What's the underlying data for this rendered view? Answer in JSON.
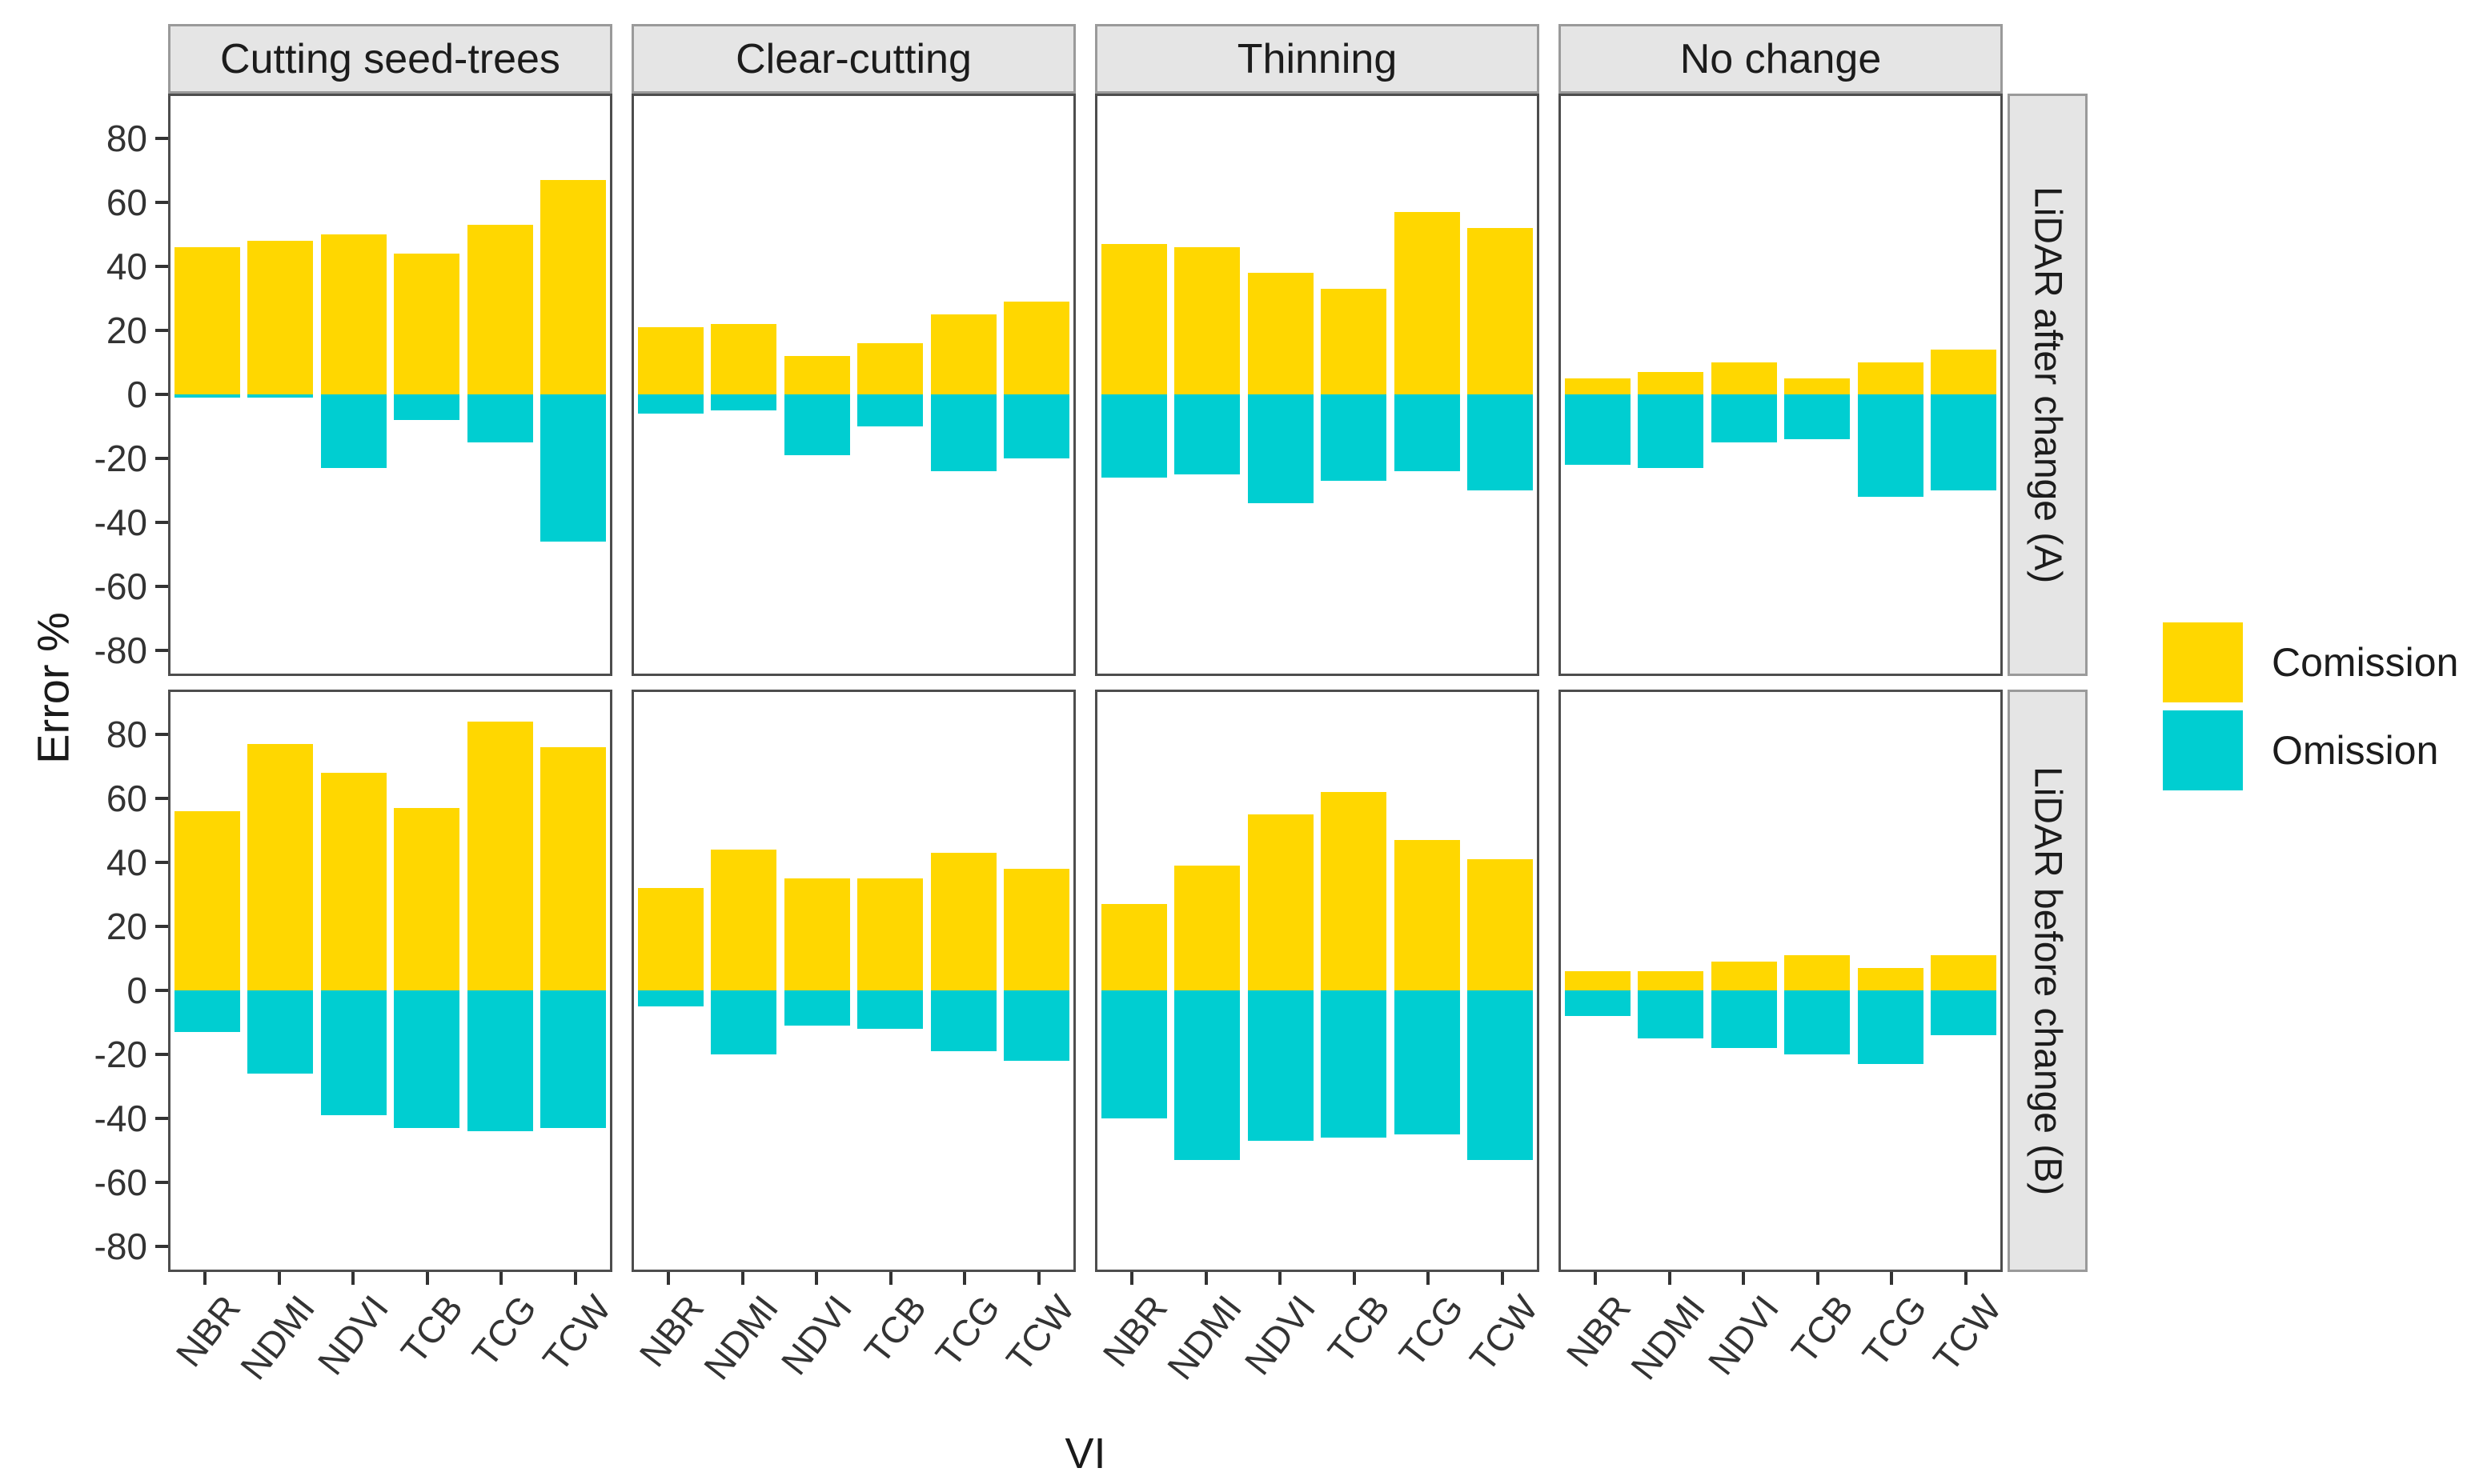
{
  "axes": {
    "y_title": "Error %",
    "x_title": "VI",
    "y_tick_labels": [
      "80",
      "60",
      "40",
      "20",
      "0",
      "-20",
      "-40",
      "-60",
      "-80"
    ]
  },
  "legend": {
    "items": [
      {
        "label": "Comission",
        "color": "#FFD700"
      },
      {
        "label": "Omission",
        "color": "#00CED1"
      }
    ]
  },
  "chart_data": {
    "type": "bar",
    "title": "",
    "xlabel": "VI",
    "ylabel": "Error %",
    "ylim": [
      -88,
      94
    ],
    "yticks": [
      80,
      60,
      40,
      20,
      0,
      -20,
      -40,
      -60,
      -80
    ],
    "grid": false,
    "legend_position": "right",
    "categories": [
      "NBR",
      "NDMI",
      "NDVI",
      "TCB",
      "TCG",
      "TCW"
    ],
    "facet_cols": [
      "Cutting seed-trees",
      "Clear-cutting",
      "Thinning",
      "No change"
    ],
    "facet_rows": [
      "LiDAR after change (A)",
      "LiDAR before change (B)"
    ],
    "series": [
      {
        "name": "Comission",
        "color": "#FFD700"
      },
      {
        "name": "Omission",
        "color": "#00CED1"
      }
    ],
    "panels": [
      {
        "row": "LiDAR after change (A)",
        "col": "Cutting seed-trees",
        "comission": [
          46,
          48,
          50,
          44,
          53,
          67
        ],
        "omission": [
          -1,
          -1,
          -23,
          -8,
          -15,
          -46
        ]
      },
      {
        "row": "LiDAR after change (A)",
        "col": "Clear-cutting",
        "comission": [
          21,
          22,
          12,
          16,
          25,
          29
        ],
        "omission": [
          -6,
          -5,
          -19,
          -10,
          -24,
          -20
        ]
      },
      {
        "row": "LiDAR after change (A)",
        "col": "Thinning",
        "comission": [
          47,
          46,
          38,
          33,
          57,
          52
        ],
        "omission": [
          -26,
          -25,
          -34,
          -27,
          -24,
          -30
        ]
      },
      {
        "row": "LiDAR after change (A)",
        "col": "No change",
        "comission": [
          5,
          7,
          10,
          5,
          10,
          14
        ],
        "omission": [
          -22,
          -23,
          -15,
          -14,
          -32,
          -30
        ]
      },
      {
        "row": "LiDAR before change (B)",
        "col": "Cutting seed-trees",
        "comission": [
          56,
          77,
          68,
          57,
          84,
          76
        ],
        "omission": [
          -13,
          -26,
          -39,
          -43,
          -44,
          -43
        ]
      },
      {
        "row": "LiDAR before change (B)",
        "col": "Clear-cutting",
        "comission": [
          32,
          44,
          35,
          35,
          43,
          38
        ],
        "omission": [
          -5,
          -20,
          -11,
          -12,
          -19,
          -22
        ]
      },
      {
        "row": "LiDAR before change (B)",
        "col": "Thinning",
        "comission": [
          27,
          39,
          55,
          62,
          47,
          41
        ],
        "omission": [
          -40,
          -53,
          -47,
          -46,
          -45,
          -53
        ]
      },
      {
        "row": "LiDAR before change (B)",
        "col": "No change",
        "comission": [
          6,
          6,
          9,
          11,
          7,
          11
        ],
        "omission": [
          -8,
          -15,
          -18,
          -20,
          -23,
          -14
        ]
      }
    ]
  }
}
